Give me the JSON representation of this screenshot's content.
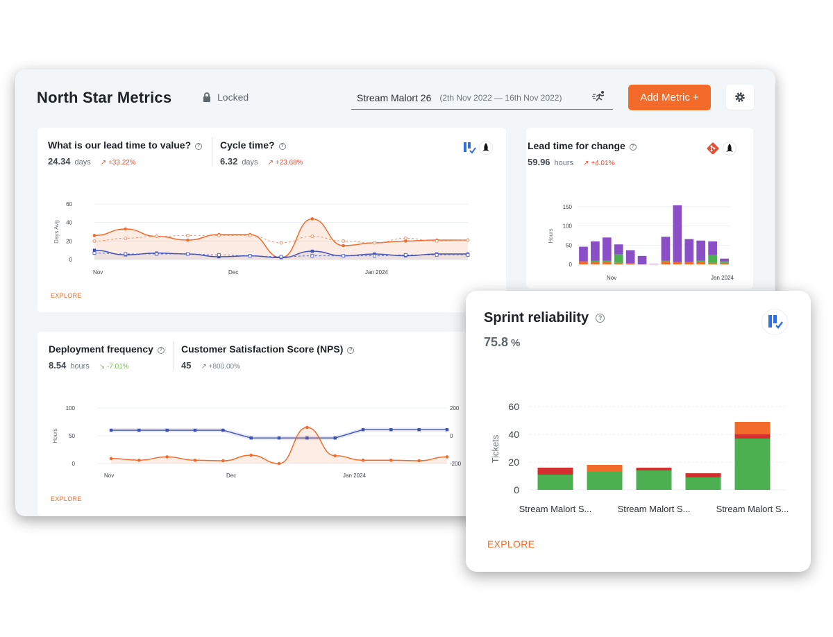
{
  "header": {
    "title": "North Star Metrics",
    "lock_label": "Locked",
    "stream_name": "Stream Malort 26",
    "date_range": "(2th Nov 2022  —  16th Nov 2022)",
    "add_metric_label": "Add Metric +",
    "settings_icon": "gear-icon",
    "stream_icon": "runner-icon"
  },
  "colors": {
    "accent": "#f26b2a",
    "blue": "#3f51b5",
    "purple": "#8a4fc7",
    "green": "#4caf50",
    "red": "#d32f2f",
    "orange_bar": "#f26b2a"
  },
  "cards": {
    "lead_time_value": {
      "title": "What is our lead time to value?",
      "value": "24.34",
      "unit": "days",
      "trend": "+33.22%"
    },
    "cycle_time": {
      "title": "Cycle time?",
      "value": "6.32",
      "unit": "days",
      "trend": "+23.68%"
    },
    "lead_time_change": {
      "title": "Lead time for change",
      "value": "59.96",
      "unit": "hours",
      "trend": "+4.01%"
    },
    "deploy_freq": {
      "title": "Deployment frequency",
      "value": "8.54",
      "unit": "hours",
      "trend": "-7.01%"
    },
    "nps": {
      "title": "Customer Satisfaction Score (NPS)",
      "value": "45",
      "unit": "",
      "trend": "+800.00%"
    },
    "sprint": {
      "title": "Sprint reliability",
      "value": "75.8",
      "unit": "%",
      "explore": "EXPLORE"
    },
    "explore": "EXPLORE"
  },
  "chart_data": [
    {
      "type": "line",
      "ylabel": "Days Avg",
      "ylim": [
        0,
        60
      ],
      "yticks": [
        0,
        20,
        40,
        60
      ],
      "xticks": [
        "Nov",
        "Dec",
        "Jan 2024"
      ],
      "series": [
        {
          "values": [
            26,
            33,
            25,
            21,
            27,
            27,
            2,
            44,
            15,
            18,
            20,
            21,
            21
          ],
          "style": "orange-solid"
        },
        {
          "values": [
            20,
            23,
            25,
            26,
            26,
            26,
            18,
            25,
            20,
            18,
            23,
            20,
            21
          ],
          "style": "orange-dashed"
        },
        {
          "values": [
            10,
            5,
            7,
            6,
            3,
            4,
            2,
            9,
            4,
            6,
            4,
            6,
            6
          ],
          "style": "blue-solid"
        },
        {
          "values": [
            7,
            6,
            6,
            6,
            5,
            4,
            3,
            4,
            4,
            4,
            5,
            5,
            5
          ],
          "style": "blue-dashed"
        }
      ]
    },
    {
      "type": "bar",
      "ylabel": "Hours",
      "ylim": [
        0,
        150
      ],
      "yticks": [
        0,
        50,
        100,
        150
      ],
      "xticks": [
        "Nov",
        "Jan 2024"
      ],
      "stacked": true,
      "series": [
        {
          "values": [
            8,
            6,
            6,
            4,
            3,
            0,
            0,
            8,
            6,
            6,
            6,
            4,
            4
          ],
          "color": "orange"
        },
        {
          "values": [
            0,
            4,
            4,
            22,
            0,
            0,
            0,
            2,
            0,
            0,
            4,
            20,
            4
          ],
          "color": "green"
        },
        {
          "values": [
            38,
            50,
            60,
            26,
            34,
            22,
            1,
            62,
            148,
            60,
            52,
            36,
            7
          ],
          "color": "purple"
        }
      ]
    },
    {
      "type": "line",
      "ylabel": "Hours",
      "ylim": [
        0,
        100
      ],
      "yticks": [
        0,
        50,
        100
      ],
      "y2ticks": [
        -200,
        0,
        200
      ],
      "xticks": [
        "Nov",
        "Dec",
        "Jan 2024"
      ],
      "series": [
        {
          "values": [
            60,
            60,
            60,
            60,
            60,
            46,
            46,
            46,
            46,
            61,
            61,
            61,
            61
          ],
          "style": "blue"
        },
        {
          "values": [
            9,
            6,
            12,
            6,
            5,
            15,
            0,
            65,
            14,
            6,
            6,
            5,
            12
          ],
          "style": "orange"
        }
      ]
    },
    {
      "type": "bar",
      "ylabel": "Tickets",
      "ylim": [
        0,
        60
      ],
      "yticks": [
        0,
        20,
        40,
        60
      ],
      "categories": [
        "Stream Malort S...",
        "",
        "Stream Malort S...",
        "",
        "Stream Malort S..."
      ],
      "stacked": true,
      "series": [
        {
          "values": [
            11,
            13,
            14,
            9,
            37
          ],
          "color": "green"
        },
        {
          "values": [
            5,
            0,
            2,
            3,
            3
          ],
          "color": "red"
        },
        {
          "values": [
            0,
            5,
            0,
            0,
            9
          ],
          "color": "orange"
        }
      ]
    }
  ]
}
